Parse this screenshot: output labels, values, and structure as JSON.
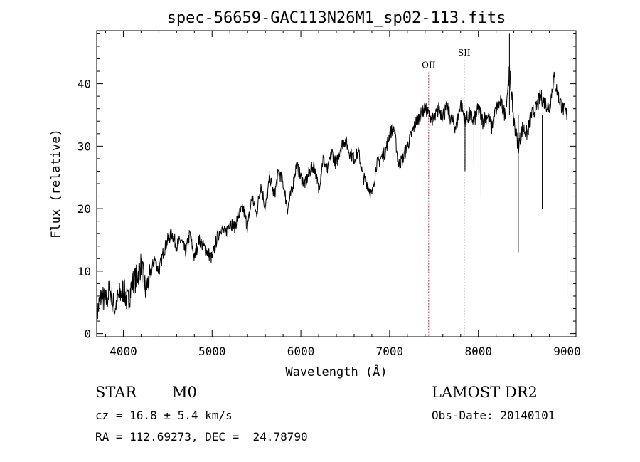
{
  "chart_data": {
    "type": "line",
    "title": "spec-56659-GAC113N26M1_sp02-113.fits",
    "xlabel": "Wavelength (Å)",
    "ylabel": "Flux (relative)",
    "xlim": [
      3700,
      9100
    ],
    "ylim": [
      -0.5,
      48.5
    ],
    "xticks": [
      "4000",
      "5000",
      "6000",
      "7000",
      "8000",
      "9000"
    ],
    "yticks": [
      "0",
      "10",
      "20",
      "30",
      "40"
    ],
    "xtick_values": [
      4000,
      5000,
      6000,
      7000,
      8000,
      9000
    ],
    "ytick_values": [
      0,
      10,
      20,
      30,
      40
    ],
    "grid": false,
    "line_color": "#000000",
    "series": [
      {
        "x": [
          3700,
          3750,
          3800,
          3850,
          3900,
          3950,
          4000,
          4050,
          4100,
          4150,
          4200,
          4250,
          4300,
          4350,
          4400,
          4450,
          4500,
          4550,
          4600,
          4650,
          4700,
          4750,
          4800,
          4850,
          4900,
          4950,
          5000,
          5050,
          5100,
          5150,
          5200,
          5250,
          5300,
          5350,
          5400,
          5450,
          5500,
          5550,
          5600,
          5650,
          5700,
          5750,
          5800,
          5850,
          5900,
          5950,
          6000,
          6050,
          6100,
          6150,
          6200,
          6250,
          6300,
          6350,
          6400,
          6450,
          6500,
          6550,
          6600,
          6650,
          6700,
          6750,
          6800,
          6850,
          6900,
          6950,
          7000,
          7050,
          7100,
          7150,
          7200,
          7250,
          7300,
          7350,
          7400,
          7450,
          7500,
          7550,
          7600,
          7650,
          7700,
          7750,
          7800,
          7850,
          7900,
          7950,
          8000,
          8050,
          8100,
          8150,
          8200,
          8250,
          8300,
          8350,
          8400,
          8450,
          8500,
          8550,
          8600,
          8650,
          8700,
          8750,
          8800,
          8850,
          8900,
          8950,
          9000
        ],
        "y": [
          3,
          6,
          5,
          7,
          4,
          6,
          7,
          5,
          8,
          9,
          11,
          7,
          9,
          12,
          10,
          13,
          15,
          16,
          14,
          15,
          13,
          16,
          12,
          15,
          14,
          13,
          12,
          15,
          17,
          16,
          18,
          17,
          19,
          20,
          17,
          22,
          19,
          24,
          20,
          25,
          22,
          26,
          24,
          20,
          23,
          27,
          25,
          24,
          26,
          27,
          23,
          28,
          26,
          29,
          27,
          30,
          31,
          29,
          28,
          29,
          25,
          24,
          22,
          27,
          28,
          29,
          32,
          33,
          27,
          28,
          30,
          32,
          34,
          35,
          36,
          35,
          34,
          36,
          35,
          36,
          34,
          33,
          37,
          34,
          35,
          34,
          36,
          34,
          35,
          33,
          36,
          37,
          35,
          42,
          34,
          30,
          33,
          32,
          35,
          36,
          38,
          37,
          36,
          41,
          38,
          36,
          35
        ]
      }
    ],
    "spikes": [
      {
        "x": 7850,
        "y": 26
      },
      {
        "x": 7950,
        "y": 27
      },
      {
        "x": 8030,
        "y": 22
      },
      {
        "x": 8350,
        "y": 48
      },
      {
        "x": 8450,
        "y": 13
      },
      {
        "x": 8720,
        "y": 20
      },
      {
        "x": 9000,
        "y": 6
      }
    ],
    "markers": [
      {
        "label": "OII",
        "x": 7440,
        "label_y": 42.5,
        "color": "#b22222"
      },
      {
        "label": "SII",
        "x": 7840,
        "label_y": 44.5,
        "color": "#b22222"
      }
    ]
  },
  "info": {
    "object_class": "STAR",
    "subclass": "M0",
    "cz_line": "cz = 16.8 ± 5.4 km/s",
    "coord_line": "RA = 112.69273, DEC =  24.78790",
    "survey": "LAMOST DR2",
    "obs_date_line": "Obs-Date: 20140101"
  }
}
